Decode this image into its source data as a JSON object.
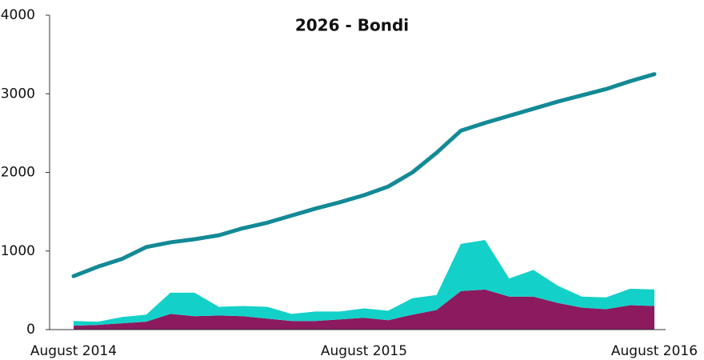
{
  "chart_data": {
    "type": "line",
    "title": "2026 - Bondi",
    "categories": [
      "August 2014",
      null,
      null,
      null,
      null,
      null,
      null,
      null,
      null,
      null,
      null,
      null,
      "August 2015",
      null,
      null,
      null,
      null,
      null,
      null,
      null,
      null,
      null,
      null,
      null,
      "August 2016"
    ],
    "ylim": [
      0,
      4000
    ],
    "yticks": [
      0,
      1000,
      2000,
      3000,
      4000
    ],
    "series": [
      {
        "type": "area",
        "stacked": true,
        "color": "#8b1a5e",
        "values": [
          50,
          60,
          80,
          100,
          200,
          170,
          180,
          170,
          140,
          110,
          110,
          130,
          150,
          120,
          190,
          250,
          490,
          510,
          420,
          420,
          340,
          280,
          260,
          310,
          300
        ]
      },
      {
        "type": "area",
        "stacked": true,
        "color": "#13d1c9",
        "values": [
          60,
          40,
          80,
          90,
          270,
          300,
          110,
          130,
          150,
          90,
          120,
          100,
          120,
          120,
          210,
          190,
          600,
          630,
          230,
          340,
          220,
          140,
          150,
          210,
          210
        ]
      },
      {
        "type": "line",
        "color": "#138a96",
        "values": [
          680,
          800,
          900,
          1050,
          1110,
          1150,
          1200,
          1290,
          1360,
          1450,
          1540,
          1620,
          1710,
          1820,
          2000,
          2250,
          2530,
          2630,
          2720,
          2810,
          2900,
          2980,
          3060,
          3160,
          3250
        ]
      }
    ]
  }
}
